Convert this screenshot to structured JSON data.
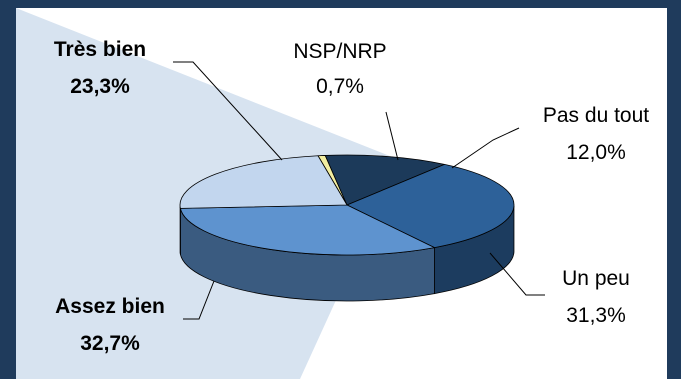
{
  "chart_data": {
    "type": "pie",
    "title": "",
    "style": "3d-exploded-pie",
    "slices": [
      {
        "label": "NSP/NRP",
        "value": 0.7,
        "value_label": "0,7%",
        "color": "#f2eea0",
        "bold": false
      },
      {
        "label": "Pas du tout",
        "value": 12.0,
        "value_label": "12,0%",
        "color": "#1c3a5a",
        "bold": false
      },
      {
        "label": "Un peu",
        "value": 31.3,
        "value_label": "31,3%",
        "color": "#2d6199",
        "bold": false
      },
      {
        "label": "Assez bien",
        "value": 32.7,
        "value_label": "32,7%",
        "color": "#5e93cf",
        "bold": true
      },
      {
        "label": "Très bien",
        "value": 23.3,
        "value_label": "23,3%",
        "color": "#c2d6ee",
        "bold": true
      }
    ],
    "colors": {
      "frame": "#1f3b5c",
      "callout_wedge": "#d7e3f0",
      "leader_line": "#000000"
    }
  }
}
